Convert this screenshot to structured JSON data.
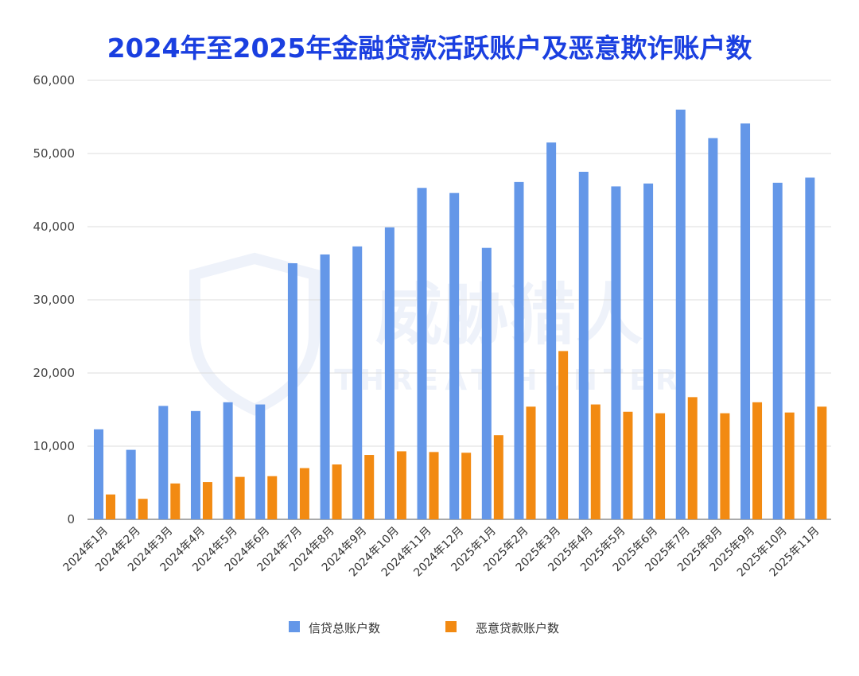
{
  "chart_data": {
    "type": "bar",
    "title": "2024年至2025年金融贷款活跃账户及恶意欺诈账户数",
    "xlabel": "",
    "ylabel": "",
    "ylim": [
      0,
      60000
    ],
    "yticks": [
      0,
      10000,
      20000,
      30000,
      40000,
      50000,
      60000
    ],
    "ytick_labels": [
      "0",
      "10,000",
      "20,000",
      "30,000",
      "40,000",
      "50,000",
      "60,000"
    ],
    "grid": true,
    "legend_position": "bottom",
    "categories": [
      "2024年1月",
      "2024年2月",
      "2024年3月",
      "2024年4月",
      "2024年5月",
      "2024年6月",
      "2024年7月",
      "2024年8月",
      "2024年9月",
      "2024年10月",
      "2024年11月",
      "2024年12月",
      "2025年1月",
      "2025年2月",
      "2025年3月",
      "2025年4月",
      "2025年5月",
      "2025年6月",
      "2025年7月",
      "2025年8月",
      "2025年9月",
      "2025年10月",
      "2025年11月"
    ],
    "series": [
      {
        "name": "信贷总账户数",
        "color": "#6497e8",
        "values": [
          12300,
          9500,
          15500,
          14800,
          16000,
          15700,
          35000,
          36200,
          37300,
          39900,
          45300,
          44600,
          37100,
          46100,
          51500,
          47500,
          45500,
          45900,
          56000,
          52100,
          54100,
          46000,
          46700
        ]
      },
      {
        "name": "恶意贷款账户数",
        "color": "#f28a12",
        "values": [
          3400,
          2800,
          4900,
          5100,
          5800,
          5900,
          7000,
          7500,
          8800,
          9300,
          9200,
          9100,
          11500,
          15400,
          23000,
          15700,
          14700,
          14500,
          16700,
          14500,
          16000,
          14600,
          15400
        ]
      }
    ]
  },
  "watermark": {
    "cn": "威胁猎人",
    "en": "THREAT HUNTER"
  }
}
